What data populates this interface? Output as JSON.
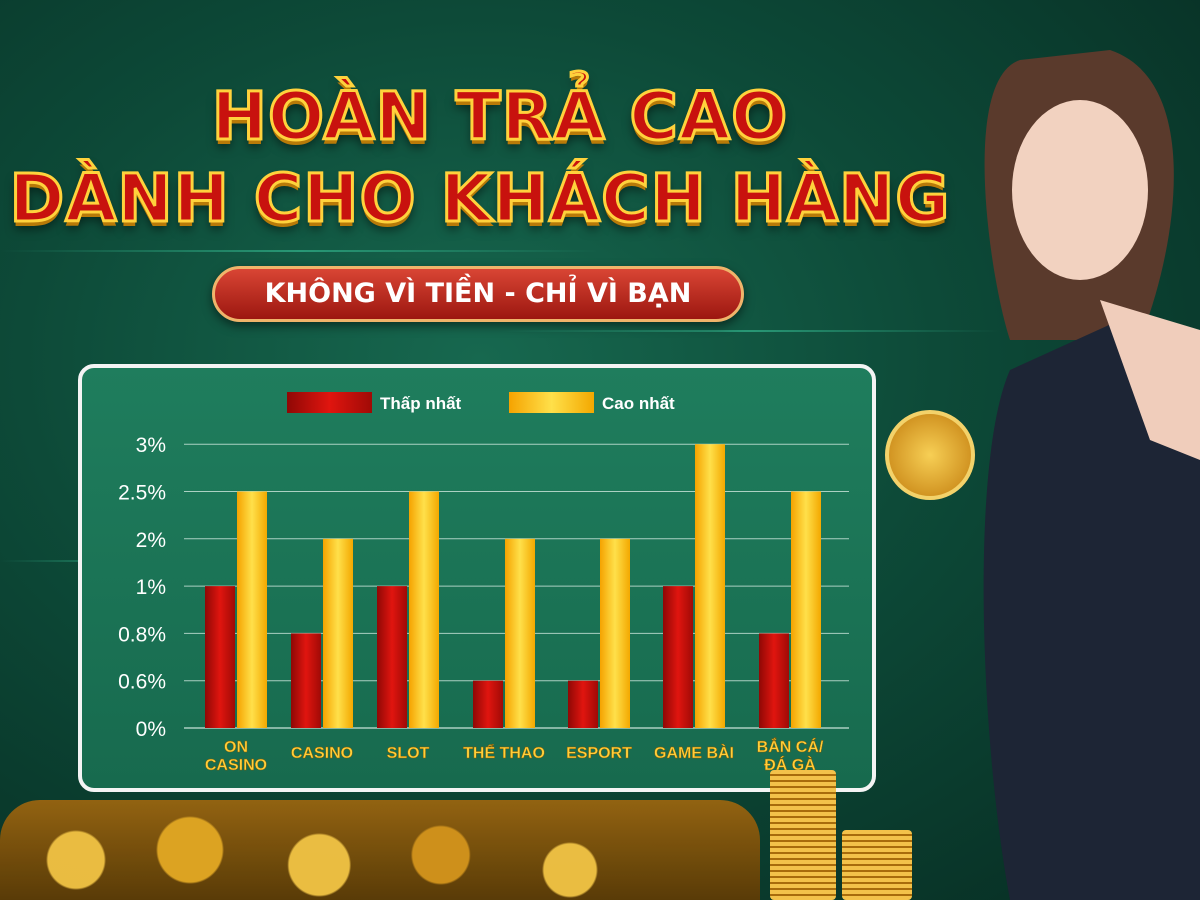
{
  "banner": {
    "title_line1": "HOÀN TRẢ CAO",
    "title_line2": "DÀNH CHO KHÁCH HÀNG",
    "slogan": "KHÔNG VÌ TIỀN - CHỈ VÌ BẠN"
  },
  "colors": {
    "low": "#c8100c",
    "high": "#ffc21a",
    "background": "#0f5240",
    "panel": "#1d7a5a"
  },
  "chart_data": {
    "type": "bar",
    "title": "",
    "categories": [
      "ON CASINO",
      "CASINO",
      "SLOT",
      "THỂ THAO",
      "ESPORT",
      "GAME BÀI",
      "BẮN CÁ/ ĐÁ GÀ"
    ],
    "y_ticks": [
      "0%",
      "0.6%",
      "0.8%",
      "1%",
      "2%",
      "2.5%",
      "3%"
    ],
    "y_scale": "categorical (evenly spaced tick labels)",
    "grid": true,
    "legend_position": "top",
    "series": [
      {
        "name": "Thấp nhất",
        "values": [
          "1%",
          "0.8%",
          "1%",
          "0.6%",
          "0.6%",
          "1%",
          "0.8%"
        ]
      },
      {
        "name": "Cao nhất",
        "values": [
          "2.5%",
          "2%",
          "2.5%",
          "2%",
          "2%",
          "3%",
          "2.5%"
        ]
      }
    ]
  }
}
